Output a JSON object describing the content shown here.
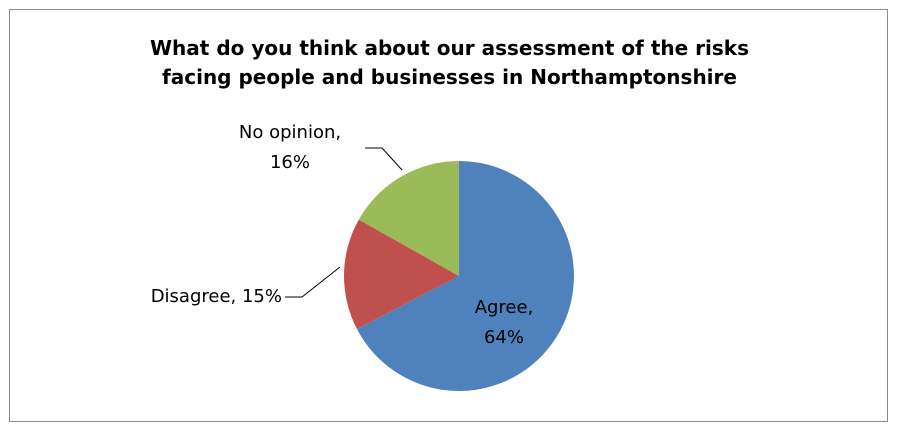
{
  "chart_data": {
    "type": "pie",
    "title_lines": [
      "What do you think about our assessment of the risks",
      "facing people and businesses in Northamptonshire"
    ],
    "slices": [
      {
        "label": "Agree",
        "value": 64,
        "color": "#4f81bd",
        "text_lines": [
          "Agree,",
          "64%"
        ]
      },
      {
        "label": "Disagree",
        "value": 15,
        "color": "#c0504d",
        "text_lines": [
          "Disagree, 15%"
        ]
      },
      {
        "label": "No opinion",
        "value": 16,
        "color": "#9bbb59",
        "text_lines": [
          "No opinion,",
          "16%"
        ]
      }
    ],
    "legend": "none",
    "start": "12 o'clock",
    "direction": "clockwise"
  }
}
